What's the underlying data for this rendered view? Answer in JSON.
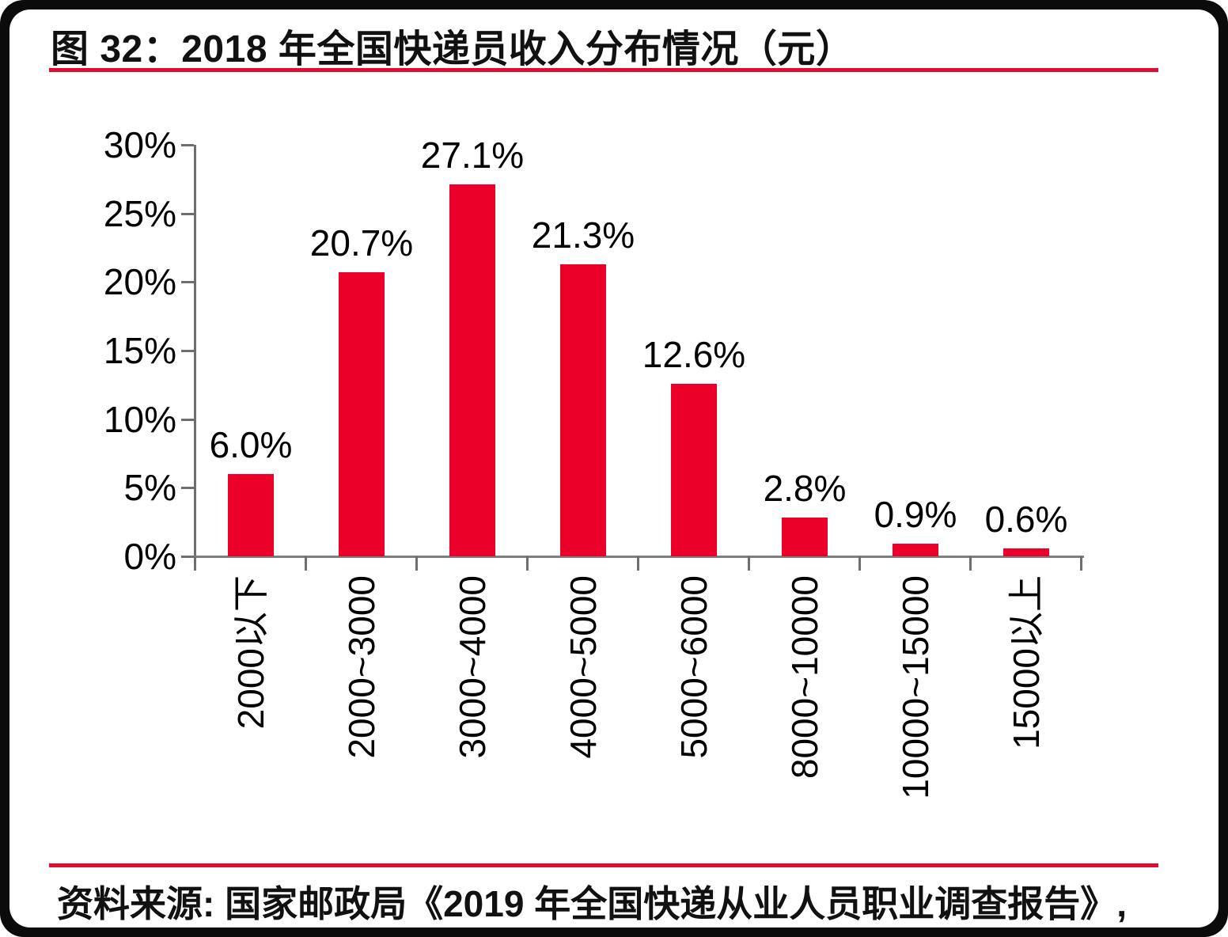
{
  "figure": {
    "title": "图 32：2018 年全国快递员收入分布情况（元）",
    "source": "资料来源: 国家邮政局《2019 年全国快递从业人员职业调查报告》,"
  },
  "colors": {
    "bar": "#ea0029",
    "accent_line": "#e30b32",
    "axis": "#6e6e6e",
    "baseline": "#7f7f7f",
    "text": "#000000",
    "frame": "#0b0b0b",
    "card": "#ffffff"
  },
  "chart_data": {
    "type": "bar",
    "title": "2018 年全国快递员收入分布情况（元）",
    "categories": [
      "2000以下",
      "2000~3000",
      "3000~4000",
      "4000~5000",
      "5000~6000",
      "8000~10000",
      "10000~15000",
      "15000以上"
    ],
    "values": [
      6.0,
      20.7,
      27.1,
      21.3,
      12.6,
      2.8,
      0.9,
      0.6
    ],
    "data_labels": [
      "6.0%",
      "20.7%",
      "27.1%",
      "21.3%",
      "12.6%",
      "2.8%",
      "0.9%",
      "0.6%"
    ],
    "xlabel": "",
    "ylabel": "",
    "ylim": [
      0,
      30
    ],
    "ytick_values": [
      0,
      5,
      10,
      15,
      20,
      25,
      30
    ],
    "ytick_labels": [
      "0%",
      "5%",
      "10%",
      "15%",
      "20%",
      "25%",
      "30%"
    ],
    "grid": false,
    "legend": "none",
    "bar_color": "#ea0029",
    "x_labels_rotated_degrees": -90
  }
}
